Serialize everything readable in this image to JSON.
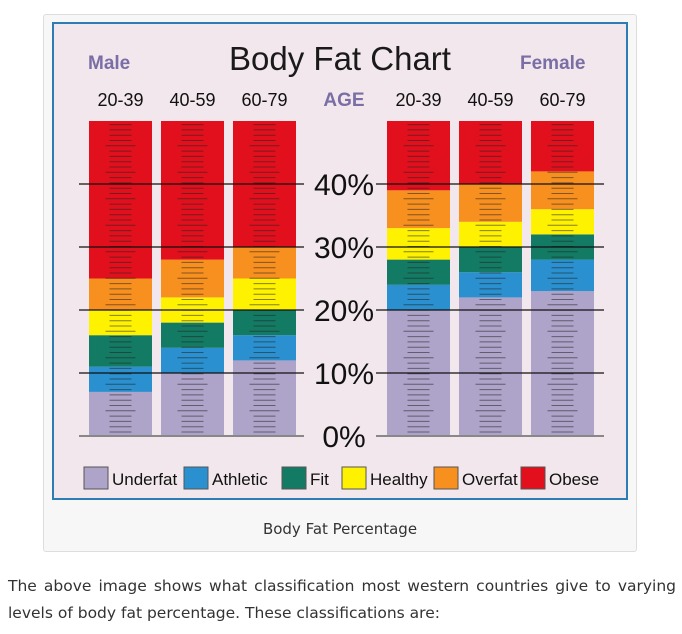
{
  "chart_data": {
    "type": "bar",
    "stacked": true,
    "title": "Body Fat Chart",
    "groups": [
      {
        "label": "Male",
        "categories": [
          "20-39",
          "40-59",
          "60-79"
        ]
      },
      {
        "label": "Female",
        "categories": [
          "20-39",
          "40-59",
          "60-79"
        ]
      }
    ],
    "center_label": "AGE",
    "y_ticks": [
      "0%",
      "10%",
      "20%",
      "30%",
      "40%"
    ],
    "ylim": [
      0,
      50
    ],
    "unit": "%",
    "series_colors": {
      "Underfat": "#aea3c9",
      "Athletic": "#2a90cf",
      "Fit": "#137a63",
      "Healthy": "#fef200",
      "Overfat": "#f7901e",
      "Obese": "#e2101d"
    },
    "bars": [
      {
        "group": "Male",
        "age": "20-39",
        "segments": [
          {
            "name": "Underfat",
            "from": 0,
            "to": 7
          },
          {
            "name": "Athletic",
            "from": 7,
            "to": 11
          },
          {
            "name": "Fit",
            "from": 11,
            "to": 16
          },
          {
            "name": "Healthy",
            "from": 16,
            "to": 20
          },
          {
            "name": "Overfat",
            "from": 20,
            "to": 25
          },
          {
            "name": "Obese",
            "from": 25,
            "to": 50
          }
        ]
      },
      {
        "group": "Male",
        "age": "40-59",
        "segments": [
          {
            "name": "Underfat",
            "from": 0,
            "to": 10
          },
          {
            "name": "Athletic",
            "from": 10,
            "to": 14
          },
          {
            "name": "Fit",
            "from": 14,
            "to": 18
          },
          {
            "name": "Healthy",
            "from": 18,
            "to": 22
          },
          {
            "name": "Overfat",
            "from": 22,
            "to": 28
          },
          {
            "name": "Obese",
            "from": 28,
            "to": 50
          }
        ]
      },
      {
        "group": "Male",
        "age": "60-79",
        "segments": [
          {
            "name": "Underfat",
            "from": 0,
            "to": 12
          },
          {
            "name": "Athletic",
            "from": 12,
            "to": 16
          },
          {
            "name": "Fit",
            "from": 16,
            "to": 20
          },
          {
            "name": "Healthy",
            "from": 20,
            "to": 25
          },
          {
            "name": "Overfat",
            "from": 25,
            "to": 30
          },
          {
            "name": "Obese",
            "from": 30,
            "to": 50
          }
        ]
      },
      {
        "group": "Female",
        "age": "20-39",
        "segments": [
          {
            "name": "Underfat",
            "from": 0,
            "to": 20
          },
          {
            "name": "Athletic",
            "from": 20,
            "to": 24
          },
          {
            "name": "Fit",
            "from": 24,
            "to": 28
          },
          {
            "name": "Healthy",
            "from": 28,
            "to": 33
          },
          {
            "name": "Overfat",
            "from": 33,
            "to": 39
          },
          {
            "name": "Obese",
            "from": 39,
            "to": 50
          }
        ]
      },
      {
        "group": "Female",
        "age": "40-59",
        "segments": [
          {
            "name": "Underfat",
            "from": 0,
            "to": 22
          },
          {
            "name": "Athletic",
            "from": 22,
            "to": 26
          },
          {
            "name": "Fit",
            "from": 26,
            "to": 30
          },
          {
            "name": "Healthy",
            "from": 30,
            "to": 34
          },
          {
            "name": "Overfat",
            "from": 34,
            "to": 40
          },
          {
            "name": "Obese",
            "from": 40,
            "to": 50
          }
        ]
      },
      {
        "group": "Female",
        "age": "60-79",
        "segments": [
          {
            "name": "Underfat",
            "from": 0,
            "to": 23
          },
          {
            "name": "Athletic",
            "from": 23,
            "to": 28
          },
          {
            "name": "Fit",
            "from": 28,
            "to": 32
          },
          {
            "name": "Healthy",
            "from": 32,
            "to": 36
          },
          {
            "name": "Overfat",
            "from": 36,
            "to": 42
          },
          {
            "name": "Obese",
            "from": 42,
            "to": 50
          }
        ]
      }
    ],
    "legend": [
      "Underfat",
      "Athletic",
      "Fit",
      "Healthy",
      "Overfat",
      "Obese"
    ],
    "legend_position": "bottom",
    "grid": true
  },
  "caption": "Body Fat Percentage",
  "body_text": "The above image shows what classification most western countries give to varying levels of body fat percentage. These classifications are:"
}
